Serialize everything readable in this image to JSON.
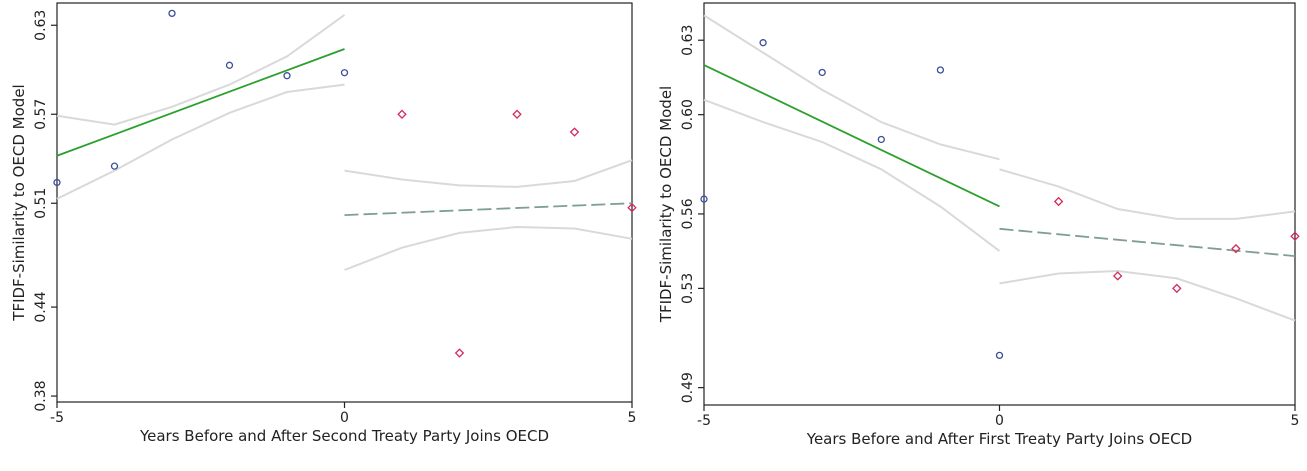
{
  "chart_data": [
    {
      "type": "scatter",
      "xlabel": "Years Before and After Second Treaty Party Joins OECD",
      "ylabel": "TFIDF-Similarity to OECD Model",
      "xlim": [
        -5,
        5
      ],
      "ylim": [
        0.376,
        0.645
      ],
      "xticks": [
        -5,
        0,
        5
      ],
      "yticks": [
        0.38,
        0.44,
        0.51,
        0.57,
        0.63
      ],
      "ytick_labels": [
        "0.38",
        "0.44",
        "0.51",
        "0.57",
        "0.63"
      ],
      "grid": false,
      "colors": {
        "before": "#3a4e9a",
        "after": "#d42a5a",
        "fit_before": "#2ca02c",
        "fit_after": "#7f9f8f",
        "ci": "#d9d9d9"
      },
      "series": [
        {
          "marker": "circle",
          "x": [
            -5,
            -4,
            -3,
            -2,
            -1,
            0
          ],
          "y": [
            0.524,
            0.535,
            0.638,
            0.603,
            0.596,
            0.598
          ]
        },
        {
          "marker": "diamond",
          "x": [
            1,
            2,
            3,
            4,
            5
          ],
          "y": [
            0.57,
            0.409,
            0.57,
            0.558,
            0.507
          ]
        }
      ],
      "fits": [
        {
          "style": "solid",
          "x": [
            -5,
            0
          ],
          "y": [
            0.542,
            0.614
          ],
          "ci_upper": [
            0.569,
            0.563,
            0.575,
            0.59,
            0.609,
            0.637
          ],
          "ci_lower": [
            0.513,
            0.532,
            0.553,
            0.571,
            0.585,
            0.59
          ]
        },
        {
          "style": "dashed",
          "x": [
            0,
            5
          ],
          "y": [
            0.502,
            0.51
          ],
          "ci_upper": [
            0.532,
            0.526,
            0.522,
            0.521,
            0.525,
            0.539
          ],
          "ci_lower": [
            0.465,
            0.48,
            0.49,
            0.494,
            0.493,
            0.486
          ]
        }
      ]
    },
    {
      "type": "scatter",
      "xlabel": "Years Before and After First Treaty Party Joins OECD",
      "ylabel": "TFIDF-Similarity to OECD Model",
      "xlim": [
        -5,
        5
      ],
      "ylim": [
        0.483,
        0.645
      ],
      "xticks": [
        -5,
        0,
        5
      ],
      "yticks": [
        0.49,
        0.53,
        0.56,
        0.6,
        0.63
      ],
      "ytick_labels": [
        "0.49",
        "0.53",
        "0.56",
        "0.60",
        "0.63"
      ],
      "grid": false,
      "colors": {
        "before": "#3a4e9a",
        "after": "#d42a5a",
        "fit_before": "#2ca02c",
        "fit_after": "#7f9f8f",
        "ci": "#d9d9d9"
      },
      "series": [
        {
          "marker": "circle",
          "x": [
            -5,
            -4,
            -3,
            -1,
            -2,
            0
          ],
          "y": [
            0.566,
            0.629,
            0.617,
            0.618,
            0.59,
            0.503
          ]
        },
        {
          "marker": "diamond",
          "x": [
            1,
            2,
            3,
            4,
            5
          ],
          "y": [
            0.565,
            0.535,
            0.53,
            0.546,
            0.551
          ]
        }
      ],
      "fits": [
        {
          "style": "solid",
          "x": [
            -5,
            0
          ],
          "y": [
            0.62,
            0.563
          ],
          "ci_upper": [
            0.64,
            0.625,
            0.61,
            0.597,
            0.588,
            0.582
          ],
          "ci_lower": [
            0.606,
            0.597,
            0.589,
            0.578,
            0.563,
            0.545
          ]
        },
        {
          "style": "dashed",
          "x": [
            0,
            5
          ],
          "y": [
            0.554,
            0.543
          ],
          "ci_upper": [
            0.578,
            0.571,
            0.562,
            0.558,
            0.558,
            0.561
          ],
          "ci_lower": [
            0.532,
            0.536,
            0.537,
            0.534,
            0.526,
            0.517
          ]
        }
      ]
    }
  ]
}
